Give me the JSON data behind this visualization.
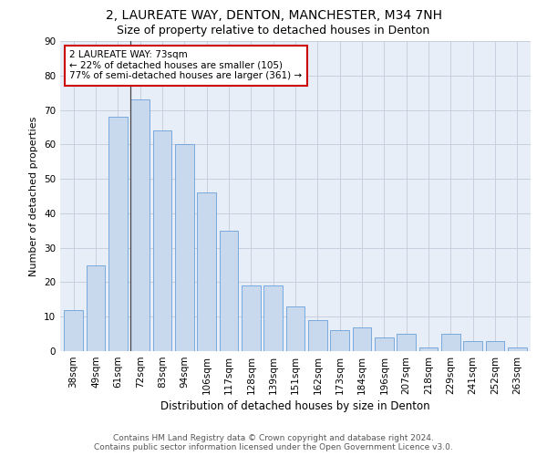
{
  "title1": "2, LAUREATE WAY, DENTON, MANCHESTER, M34 7NH",
  "title2": "Size of property relative to detached houses in Denton",
  "xlabel": "Distribution of detached houses by size in Denton",
  "ylabel": "Number of detached properties",
  "categories": [
    "38sqm",
    "49sqm",
    "61sqm",
    "72sqm",
    "83sqm",
    "94sqm",
    "106sqm",
    "117sqm",
    "128sqm",
    "139sqm",
    "151sqm",
    "162sqm",
    "173sqm",
    "184sqm",
    "196sqm",
    "207sqm",
    "218sqm",
    "229sqm",
    "241sqm",
    "252sqm",
    "263sqm"
  ],
  "values": [
    12,
    25,
    68,
    73,
    64,
    60,
    46,
    35,
    19,
    19,
    13,
    9,
    6,
    7,
    4,
    5,
    1,
    5,
    3,
    3,
    1
  ],
  "bar_color": "#c8d9ee",
  "bar_edge_color": "#6a9fd8",
  "annotation_text": "2 LAUREATE WAY: 73sqm\n← 22% of detached houses are smaller (105)\n77% of semi-detached houses are larger (361) →",
  "annotation_box_edge_color": "#cc0000",
  "ylim": [
    0,
    90
  ],
  "yticks": [
    0,
    10,
    20,
    30,
    40,
    50,
    60,
    70,
    80,
    90
  ],
  "grid_color": "#c8d0e0",
  "bg_color": "#e8eef8",
  "footer1": "Contains HM Land Registry data © Crown copyright and database right 2024.",
  "footer2": "Contains public sector information licensed under the Open Government Licence v3.0.",
  "title1_fontsize": 10,
  "title2_fontsize": 9,
  "xlabel_fontsize": 8.5,
  "ylabel_fontsize": 8,
  "tick_fontsize": 7.5,
  "annotation_fontsize": 7.5,
  "footer_fontsize": 6.5
}
